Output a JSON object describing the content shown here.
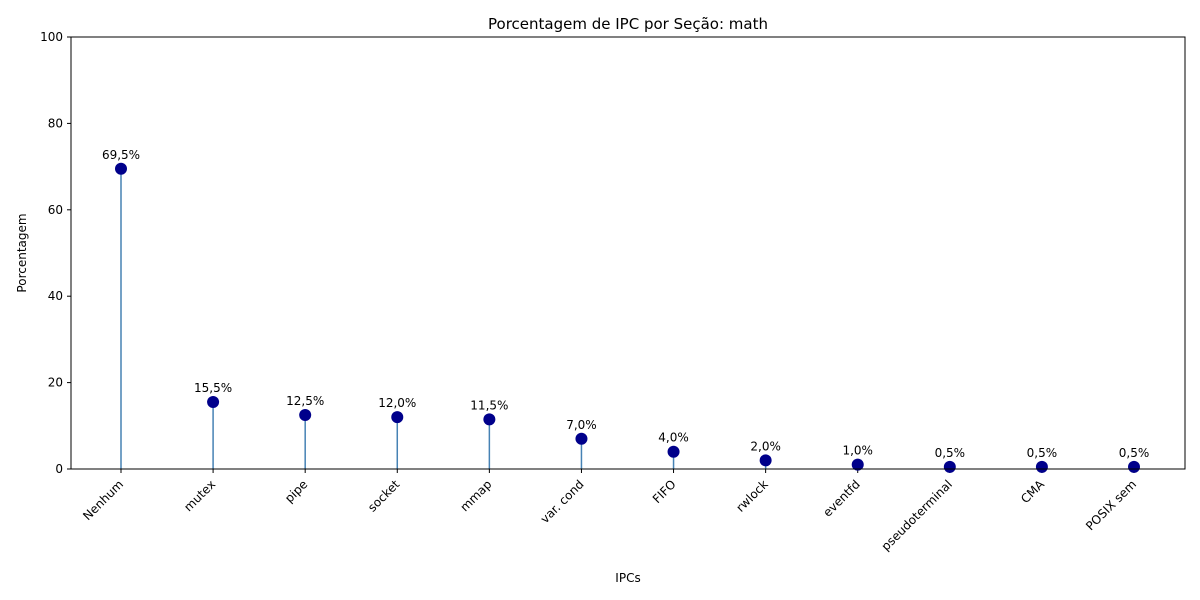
{
  "chart_data": {
    "type": "lollipop",
    "title": "Porcentagem de IPC por Seção: math",
    "xlabel": "IPCs",
    "ylabel": "Porcentagem",
    "ylim": [
      0,
      100
    ],
    "yticks": [
      0,
      20,
      40,
      60,
      80,
      100
    ],
    "categories": [
      "Nenhum",
      "mutex",
      "pipe",
      "socket",
      "mmap",
      "var. cond",
      "FIFO",
      "rwlock",
      "eventfd",
      "pseudoterminal",
      "CMA",
      "POSIX sem"
    ],
    "values": [
      69.5,
      15.5,
      12.5,
      12.0,
      11.5,
      7.0,
      4.0,
      2.0,
      1.0,
      0.5,
      0.5,
      0.5
    ],
    "data_labels": [
      "69,5%",
      "15,5%",
      "12,5%",
      "12,0%",
      "11,5%",
      "7,0%",
      "4,0%",
      "2,0%",
      "1,0%",
      "0,5%",
      "0,5%",
      "0,5%"
    ],
    "grid": false,
    "colors": {
      "marker": "#00008b",
      "stem": "#4682b4"
    }
  }
}
